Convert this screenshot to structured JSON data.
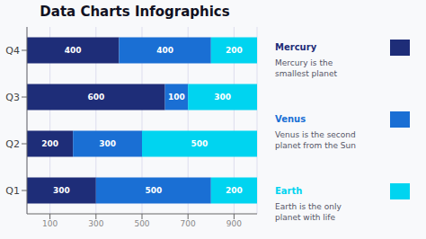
{
  "chart_data": {
    "type": "bar",
    "title": "Data Charts Infographics",
    "orientation": "horizontal",
    "stacked": true,
    "categories": [
      "Q1",
      "Q2",
      "Q3",
      "Q4"
    ],
    "series": [
      {
        "name": "Mercury",
        "color": "#1e2d78",
        "values": [
          300,
          200,
          600,
          400
        ],
        "subtitle": "Mercury is the\nsmallest planet"
      },
      {
        "name": "Venus",
        "color": "#1a6fd4",
        "values": [
          500,
          300,
          100,
          400
        ],
        "subtitle": "Venus is the second\nplanet from the Sun"
      },
      {
        "name": "Earth",
        "color": "#00d4f0",
        "values": [
          200,
          500,
          300,
          200
        ],
        "subtitle": "Earth is the only\nplanet with life"
      }
    ],
    "xlim": [
      0,
      1000
    ],
    "xticks": [
      100,
      300,
      500,
      700,
      900
    ],
    "grid": true,
    "data_labels": true,
    "legend": "right"
  }
}
